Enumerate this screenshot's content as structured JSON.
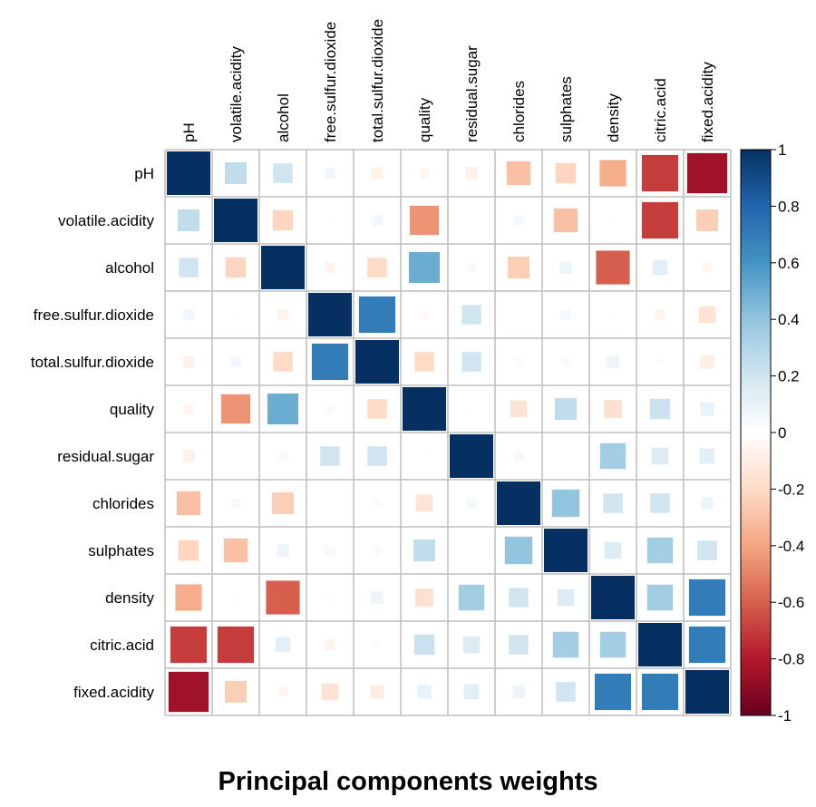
{
  "chart_data": {
    "type": "heatmap",
    "title": "Principal components weights",
    "variables": [
      "pH",
      "volatile.acidity",
      "alcohol",
      "free.sulfur.dioxide",
      "total.sulfur.dioxide",
      "quality",
      "residual.sugar",
      "chlorides",
      "sulphates",
      "density",
      "citric.acid",
      "fixed.acidity"
    ],
    "values": [
      [
        1,
        0.25,
        0.2,
        0.06,
        -0.07,
        -0.05,
        -0.08,
        -0.3,
        -0.22,
        -0.37,
        -0.7,
        -0.85
      ],
      [
        0.25,
        1,
        -0.22,
        -0.01,
        0.06,
        -0.45,
        0,
        0.05,
        -0.3,
        -0.02,
        -0.7,
        -0.25
      ],
      [
        0.2,
        -0.22,
        1,
        -0.06,
        -0.2,
        0.5,
        0.04,
        -0.25,
        0.08,
        -0.6,
        0.12,
        -0.05
      ],
      [
        0.06,
        -0.01,
        -0.06,
        1,
        0.7,
        -0.04,
        0.2,
        0,
        0.05,
        -0.02,
        -0.06,
        -0.15
      ],
      [
        -0.07,
        0.06,
        -0.2,
        0.7,
        1,
        -0.2,
        0.2,
        0.03,
        0.03,
        0.08,
        0.02,
        -0.1
      ],
      [
        -0.05,
        -0.45,
        0.5,
        -0.04,
        -0.2,
        1,
        -0.01,
        -0.15,
        0.25,
        -0.17,
        0.22,
        0.1
      ],
      [
        -0.08,
        0,
        0.04,
        0.2,
        0.2,
        -0.01,
        1,
        0.05,
        0,
        0.35,
        0.15,
        0.12
      ],
      [
        -0.3,
        0.05,
        -0.25,
        0,
        0.03,
        -0.15,
        0.05,
        1,
        0.4,
        0.2,
        0.2,
        0.08
      ],
      [
        -0.22,
        -0.3,
        0.08,
        0.05,
        0.03,
        0.25,
        0,
        0.4,
        1,
        0.15,
        0.35,
        0.2
      ],
      [
        -0.37,
        -0.02,
        -0.6,
        -0.02,
        0.08,
        -0.17,
        0.35,
        0.2,
        0.15,
        1,
        0.35,
        0.7
      ],
      [
        -0.7,
        -0.7,
        0.12,
        -0.06,
        0.02,
        0.22,
        0.15,
        0.2,
        0.35,
        0.35,
        1,
        0.7
      ],
      [
        -0.85,
        -0.25,
        -0.05,
        -0.15,
        -0.1,
        0.1,
        0.12,
        0.08,
        0.2,
        0.7,
        0.7,
        1
      ]
    ],
    "colorbar": {
      "range": [
        -1,
        1
      ],
      "ticks": [
        "1",
        "0.8",
        "0.6",
        "0.4",
        "0.2",
        "0",
        "-0.2",
        "-0.4",
        "-0.6",
        "-0.8",
        "-1"
      ]
    },
    "colors": {
      "negative_end": "#67001f",
      "neutral": "#ffffff",
      "positive_end": "#053061",
      "grid": "#bfbfbf"
    }
  }
}
